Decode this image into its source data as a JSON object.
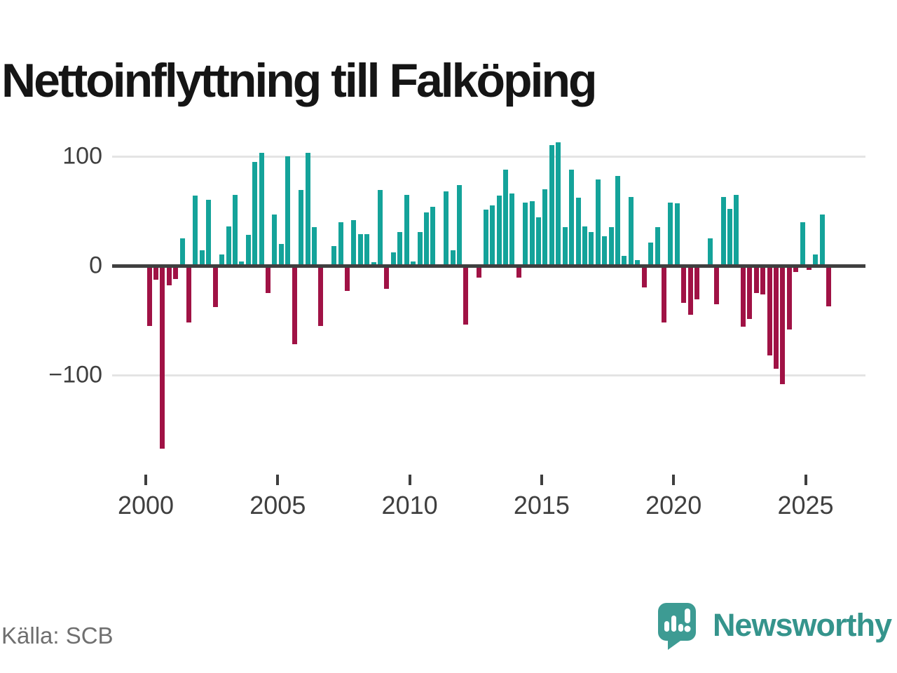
{
  "title": "Nettoinflyttning till Falköping",
  "source": "Källa: SCB",
  "logo": {
    "text": "Newsworthy"
  },
  "colors": {
    "positive": "#14a39a",
    "negative": "#a01245",
    "axis": "#3f3f3f",
    "gridline": "#e4e4e4",
    "logo_bubble": "#3d9b93",
    "logo_text": "#35948c"
  },
  "y_axis": {
    "ticks": [
      {
        "label": "100",
        "value": 100
      },
      {
        "label": "0",
        "value": 0
      },
      {
        "label": "−100",
        "value": -100
      }
    ]
  },
  "x_axis": {
    "ticks": [
      "2000",
      "2005",
      "2010",
      "2015",
      "2020",
      "2025"
    ]
  },
  "chart_data": {
    "type": "bar",
    "title": "Nettoinflyttning till Falköping",
    "xlabel": "",
    "ylabel": "",
    "ylim": [
      -175,
      125
    ],
    "grid": "horizontal",
    "legend": "none",
    "x": [
      "2000K1",
      "2000K2",
      "2000K3",
      "2000K4",
      "2001K1",
      "2001K2",
      "2001K3",
      "2001K4",
      "2002K1",
      "2002K2",
      "2002K3",
      "2002K4",
      "2003K1",
      "2003K2",
      "2003K3",
      "2003K4",
      "2004K1",
      "2004K2",
      "2004K3",
      "2004K4",
      "2005K1",
      "2005K2",
      "2005K3",
      "2005K4",
      "2006K1",
      "2006K2",
      "2006K3",
      "2006K4",
      "2007K1",
      "2007K2",
      "2007K3",
      "2007K4",
      "2008K1",
      "2008K2",
      "2008K3",
      "2008K4",
      "2009K1",
      "2009K2",
      "2009K3",
      "2009K4",
      "2010K1",
      "2010K2",
      "2010K3",
      "2010K4",
      "2011K1",
      "2011K2",
      "2011K3",
      "2011K4",
      "2012K1",
      "2012K2",
      "2012K3",
      "2012K4",
      "2013K1",
      "2013K2",
      "2013K3",
      "2013K4",
      "2014K1",
      "2014K2",
      "2014K3",
      "2014K4",
      "2015K1",
      "2015K2",
      "2015K3",
      "2015K4",
      "2016K1",
      "2016K2",
      "2016K3",
      "2016K4",
      "2017K1",
      "2017K2",
      "2017K3",
      "2017K4",
      "2018K1",
      "2018K2",
      "2018K3",
      "2018K4",
      "2019K1",
      "2019K2",
      "2019K3",
      "2019K4",
      "2020K1",
      "2020K2",
      "2020K3",
      "2020K4",
      "2021K1",
      "2021K2",
      "2021K3",
      "2021K4",
      "2022K1",
      "2022K2",
      "2022K3",
      "2022K4",
      "2023K1",
      "2023K2",
      "2023K3",
      "2023K4",
      "2024K1",
      "2024K2",
      "2024K3",
      "2024K4",
      "2025K1",
      "2025K2",
      "2025K3",
      "2025K4"
    ],
    "values": [
      -55,
      -13,
      -167,
      -18,
      -12,
      25,
      -52,
      64,
      14,
      60,
      -38,
      10,
      36,
      65,
      4,
      28,
      95,
      103,
      -25,
      47,
      20,
      100,
      -72,
      69,
      103,
      35,
      -55,
      0,
      18,
      40,
      -23,
      42,
      29,
      29,
      3,
      69,
      -21,
      12,
      31,
      65,
      4,
      31,
      49,
      54,
      0,
      68,
      14,
      74,
      -54,
      0,
      -11,
      51,
      55,
      64,
      88,
      66,
      -11,
      58,
      59,
      44,
      70,
      110,
      113,
      35,
      88,
      62,
      36,
      31,
      79,
      27,
      35,
      82,
      9,
      63,
      5,
      -20,
      21,
      35,
      -52,
      58,
      57,
      -34,
      -45,
      -31,
      -2,
      25,
      -35,
      63,
      52,
      65,
      -56,
      -49,
      -25,
      -26,
      -82,
      -94,
      -108,
      -58,
      -6,
      40,
      -4,
      10,
      47,
      -37
    ]
  }
}
